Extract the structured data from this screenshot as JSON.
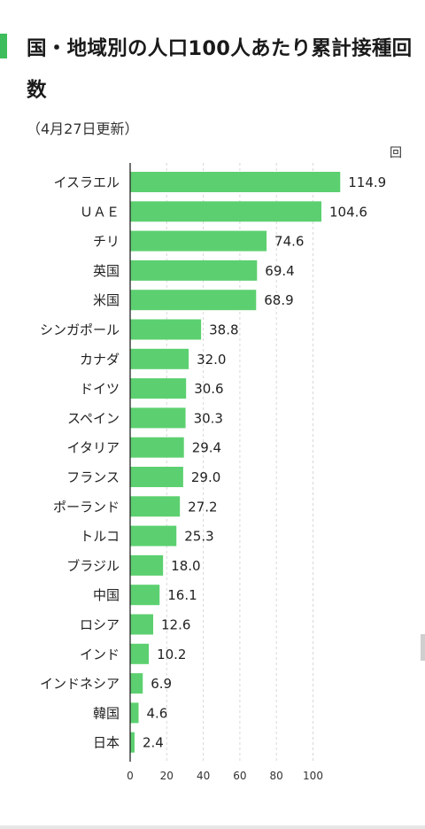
{
  "title": "国・地域別の人口100人あたり累計接種回数",
  "update_note": "（4月27日更新）",
  "colors": {
    "bar": "#5cd070",
    "accent": "#3dbd5b",
    "grid": "#d8d8d8",
    "axis": "#222222"
  },
  "chart_data": {
    "type": "bar",
    "orientation": "horizontal",
    "categories": [
      "イスラエル",
      "ＵＡＥ",
      "チリ",
      "英国",
      "米国",
      "シンガポール",
      "カナダ",
      "ドイツ",
      "スペイン",
      "イタリア",
      "フランス",
      "ポーランド",
      "トルコ",
      "ブラジル",
      "中国",
      "ロシア",
      "インド",
      "インドネシア",
      "韓国",
      "日本"
    ],
    "values": [
      114.9,
      104.6,
      74.6,
      69.4,
      68.9,
      38.8,
      32.0,
      30.6,
      30.3,
      29.4,
      29.0,
      27.2,
      25.3,
      18.0,
      16.1,
      12.6,
      10.2,
      6.9,
      4.6,
      2.4
    ],
    "value_labels": [
      "114.9",
      "104.6",
      "74.6",
      "69.4",
      "68.9",
      "38.8",
      "32.0",
      "30.6",
      "30.3",
      "29.4",
      "29.0",
      "27.2",
      "25.3",
      "18.0",
      "16.1",
      "12.6",
      "10.2",
      "6.9",
      "4.6",
      "2.4"
    ],
    "xlim": [
      0,
      115
    ],
    "xticks": [
      0,
      20,
      40,
      60,
      80,
      100
    ],
    "unit": "回",
    "grid": true,
    "grid_style": "dashed"
  }
}
